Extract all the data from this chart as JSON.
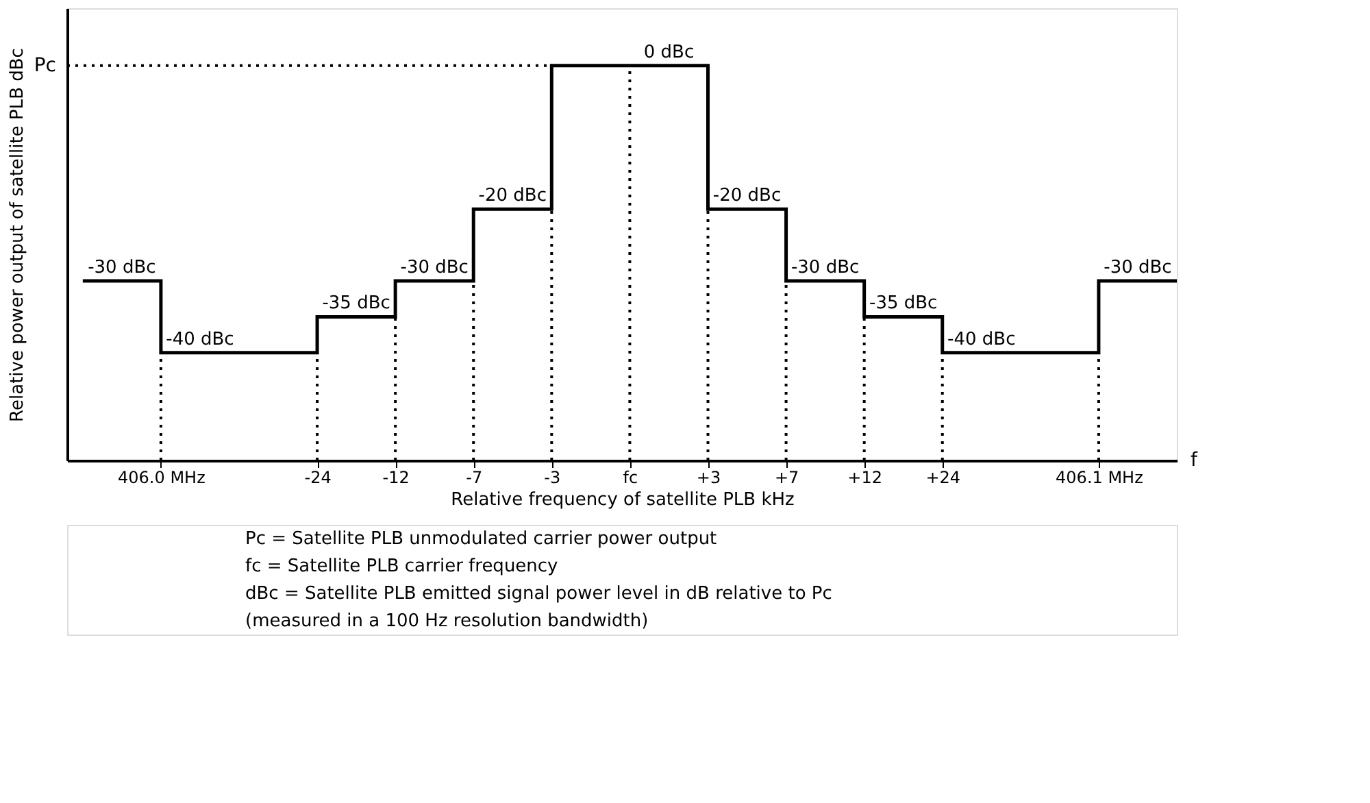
{
  "chart_data": {
    "type": "step",
    "categories": [
      null,
      "406.0 MHz",
      null,
      "-24",
      "-12",
      "-7",
      "-3",
      "fc",
      "+3",
      "+7",
      "+12",
      "+24",
      null,
      "406.1 MHz",
      null
    ],
    "values": [
      -30,
      -40,
      -40,
      -35,
      -30,
      -20,
      0,
      0,
      -20,
      -30,
      -35,
      -40,
      -40,
      -30,
      -30
    ],
    "value_labels": [
      "-30 dBc",
      "-40 dBc",
      null,
      "-35 dBc",
      "-30 dBc",
      "-20 dBc",
      null,
      "0 dBc",
      "-20 dBc",
      "-30 dBc",
      "-35 dBc",
      "-40 dBc",
      null,
      "-30 dBc",
      null
    ],
    "color": "#000000",
    "ylim": [
      -55,
      8
    ],
    "xlabel": "Relative frequency of satellite PLB kHz",
    "ylabel": "Relative power output of satellite PLB dBc",
    "ref_lines": [
      {
        "axis": "y",
        "value": 0,
        "label": null,
        "line_style": "dotted",
        "color": "#000000"
      },
      {
        "axis": "x",
        "value": "406.0 MHz",
        "line_style": "dotted",
        "color": "#000000"
      },
      {
        "axis": "x",
        "value": "-24",
        "line_style": "dotted",
        "color": "#000000"
      },
      {
        "axis": "x",
        "value": "-12",
        "line_style": "dotted",
        "color": "#000000"
      },
      {
        "axis": "x",
        "value": "-7",
        "line_style": "dotted",
        "color": "#000000"
      },
      {
        "axis": "x",
        "value": "-3",
        "line_style": "dotted",
        "color": "#000000"
      },
      {
        "axis": "x",
        "value": "fc",
        "line_style": "dotted",
        "color": "#000000"
      },
      {
        "axis": "x",
        "value": "+3",
        "line_style": "dotted",
        "color": "#000000"
      },
      {
        "axis": "x",
        "value": "+7",
        "line_style": "dotted",
        "color": "#000000"
      },
      {
        "axis": "x",
        "value": "+12",
        "line_style": "dotted",
        "color": "#000000"
      },
      {
        "axis": "x",
        "value": "+24",
        "line_style": "dotted",
        "color": "#000000"
      },
      {
        "axis": "x",
        "value": "406.1 MHz",
        "line_style": "dotted",
        "color": "#000000"
      }
    ],
    "grid": false,
    "annotations": [
      "Pc",
      "f",
      "Pc = Satellite PLB unmodulated carrier power output",
      "fc = Satellite PLB carrier frequency",
      "dBc = Satellite PLB emitted signal power level in dB relative to Pc",
      "(measured in a 100 Hz resolution bandwidth)"
    ]
  }
}
